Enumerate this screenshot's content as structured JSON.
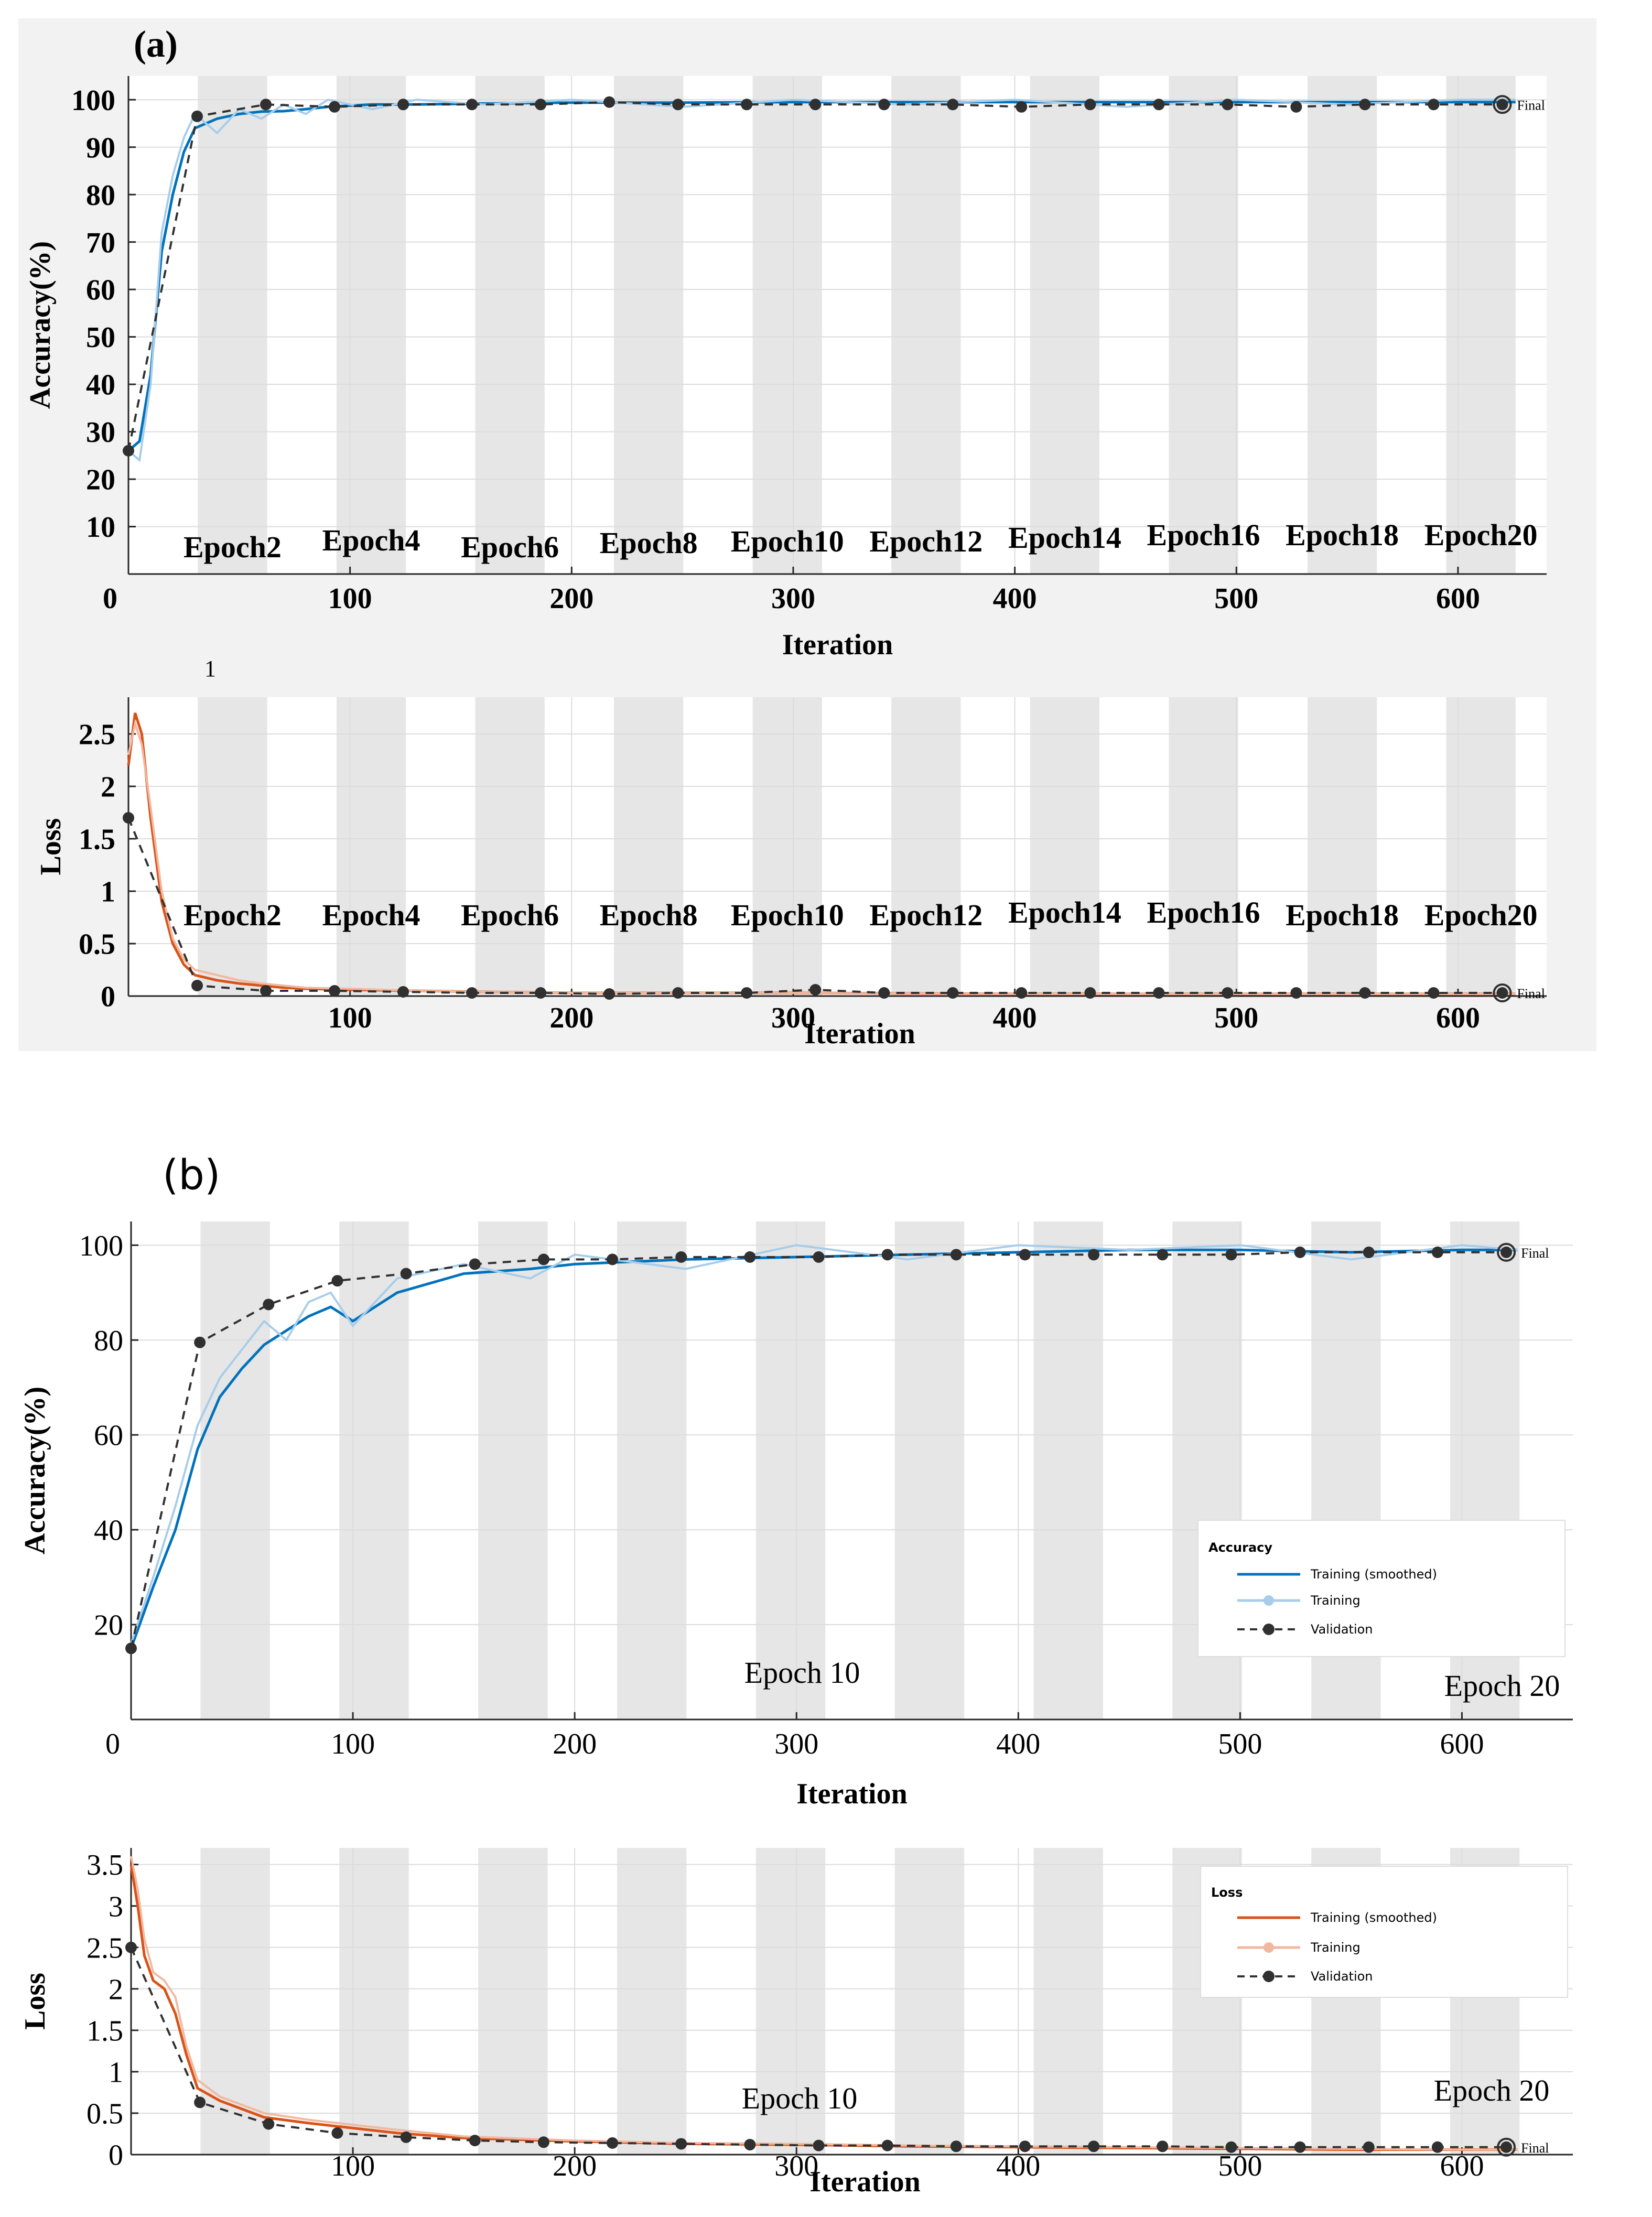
{
  "colors": {
    "panel_bg": "#f2f2f2",
    "epoch_band": "#e6e6e6",
    "acc_train_smoothed": "#0072bd",
    "acc_train": "#a7cdea",
    "loss_train_smoothed": "#d95319",
    "loss_train": "#f2b89f",
    "validation": "#303030"
  },
  "chart_data": [
    {
      "id": "a-accuracy",
      "type": "line",
      "panel_label": "(a)",
      "ylabel": "Accuracy(%)",
      "xlabel": "Iteration",
      "xlim": [
        0,
        640
      ],
      "ylim": [
        0,
        105
      ],
      "x_ticks": [
        "0",
        "100",
        "200",
        "300",
        "400",
        "500",
        "600"
      ],
      "y_ticks": [
        "10",
        "20",
        "30",
        "40",
        "50",
        "60",
        "70",
        "80",
        "90",
        "100"
      ],
      "epoch_labels": [
        "Epoch2",
        "Epoch4",
        "Epoch6",
        "Epoch8",
        "Epoch10",
        "Epoch12",
        "Epoch14",
        "Epoch16",
        "Epoch18",
        "Epoch20"
      ],
      "final_label": "Final",
      "stray_label": "1",
      "series": [
        {
          "name": "Training (smoothed)",
          "x": [
            0,
            5,
            10,
            15,
            20,
            25,
            30,
            40,
            50,
            60,
            70,
            80,
            90,
            110,
            130,
            160,
            200,
            250,
            300,
            350,
            400,
            450,
            500,
            550,
            600,
            626
          ],
          "values": [
            26,
            28,
            42,
            68,
            80,
            89,
            94,
            96,
            97,
            97.5,
            97.6,
            98,
            98.5,
            99,
            99,
            99.2,
            99.4,
            99.4,
            99.5,
            99.5,
            99.5,
            99.5,
            99.5,
            99.5,
            99.5,
            99.5
          ]
        },
        {
          "name": "Training",
          "x": [
            0,
            5,
            10,
            15,
            20,
            25,
            30,
            40,
            50,
            60,
            70,
            80,
            90,
            110,
            130,
            160,
            200,
            250,
            300,
            350,
            400,
            450,
            500,
            550,
            600,
            626
          ],
          "values": [
            26,
            24,
            40,
            72,
            84,
            92,
            97,
            93,
            98,
            96,
            99,
            97,
            100,
            98,
            100,
            99,
            100,
            98.5,
            100,
            99,
            100,
            98.5,
            100,
            99,
            100,
            100
          ]
        },
        {
          "name": "Validation",
          "x": [
            0,
            31,
            62,
            93,
            124,
            155,
            186,
            217,
            248,
            279,
            310,
            341,
            372,
            403,
            434,
            465,
            496,
            527,
            558,
            589,
            620
          ],
          "values": [
            26,
            96.5,
            99,
            98.5,
            99,
            99,
            99,
            99.5,
            99,
            99,
            99,
            99,
            99,
            98.5,
            99,
            99,
            99,
            98.5,
            99,
            99,
            99
          ]
        }
      ]
    },
    {
      "id": "a-loss",
      "type": "line",
      "ylabel": "Loss",
      "xlabel": "Iteration",
      "xlim": [
        0,
        640
      ],
      "ylim": [
        0,
        2.85
      ],
      "x_ticks": [
        "100",
        "200",
        "300",
        "400",
        "500",
        "600"
      ],
      "y_ticks": [
        "0",
        "0.5",
        "1",
        "1.5",
        "2",
        "2.5"
      ],
      "epoch_labels": [
        "Epoch2",
        "Epoch4",
        "Epoch6",
        "Epoch8",
        "Epoch10",
        "Epoch12",
        "Epoch14",
        "Epoch16",
        "Epoch18",
        "Epoch20"
      ],
      "final_label": "Final",
      "series": [
        {
          "name": "Training (smoothed)",
          "x": [
            0,
            3,
            6,
            10,
            15,
            20,
            25,
            30,
            40,
            50,
            60,
            70,
            80,
            100,
            130,
            160,
            200,
            300,
            400,
            500,
            600,
            626
          ],
          "values": [
            2.2,
            2.7,
            2.5,
            1.7,
            0.9,
            0.5,
            0.3,
            0.2,
            0.15,
            0.12,
            0.1,
            0.08,
            0.07,
            0.06,
            0.05,
            0.04,
            0.03,
            0.03,
            0.02,
            0.02,
            0.02,
            0.02
          ]
        },
        {
          "name": "Training",
          "x": [
            0,
            3,
            6,
            10,
            15,
            20,
            25,
            30,
            40,
            50,
            60,
            70,
            80,
            100,
            130,
            160,
            200,
            300,
            400,
            500,
            600,
            626
          ],
          "values": [
            2.3,
            2.6,
            2.4,
            1.8,
            1.0,
            0.55,
            0.35,
            0.25,
            0.2,
            0.15,
            0.12,
            0.1,
            0.08,
            0.07,
            0.05,
            0.04,
            0.03,
            0.03,
            0.02,
            0.02,
            0.02,
            0.02
          ]
        },
        {
          "name": "Validation",
          "x": [
            0,
            31,
            62,
            93,
            124,
            155,
            186,
            217,
            248,
            279,
            310,
            341,
            372,
            403,
            434,
            465,
            496,
            527,
            558,
            589,
            620
          ],
          "values": [
            1.7,
            0.1,
            0.05,
            0.05,
            0.04,
            0.03,
            0.03,
            0.02,
            0.03,
            0.03,
            0.06,
            0.03,
            0.03,
            0.03,
            0.03,
            0.03,
            0.03,
            0.03,
            0.03,
            0.03,
            0.03
          ]
        }
      ]
    },
    {
      "id": "b-accuracy",
      "type": "line",
      "panel_label": "(b)",
      "ylabel": "Accuracy(%)",
      "xlabel": "Iteration",
      "xlim": [
        0,
        650
      ],
      "ylim": [
        0,
        105
      ],
      "x_ticks": [
        "0",
        "100",
        "200",
        "300",
        "400",
        "500",
        "600"
      ],
      "y_ticks": [
        "20",
        "40",
        "60",
        "80",
        "100"
      ],
      "epoch_labels": [
        "Epoch 10",
        "Epoch 20"
      ],
      "final_label": "Final",
      "legend": {
        "title": "Accuracy",
        "entries": [
          "Training (smoothed)",
          "Training",
          "Validation"
        ]
      },
      "series": [
        {
          "name": "Training (smoothed)",
          "x": [
            0,
            10,
            20,
            30,
            40,
            50,
            60,
            70,
            80,
            90,
            100,
            120,
            150,
            180,
            200,
            250,
            300,
            350,
            400,
            450,
            500,
            550,
            600,
            625
          ],
          "values": [
            15,
            28,
            40,
            57,
            68,
            74,
            79,
            82,
            85,
            87,
            84,
            90,
            94,
            95,
            96,
            97,
            97.5,
            98,
            98.5,
            99,
            99,
            98.5,
            99,
            99
          ]
        },
        {
          "name": "Training",
          "x": [
            0,
            10,
            20,
            30,
            40,
            50,
            60,
            70,
            80,
            90,
            100,
            120,
            150,
            180,
            200,
            250,
            300,
            350,
            400,
            450,
            500,
            550,
            600,
            625
          ],
          "values": [
            16,
            30,
            45,
            62,
            72,
            78,
            84,
            80,
            88,
            90,
            83,
            93,
            96,
            93,
            98,
            95,
            100,
            97,
            100,
            99,
            100,
            97,
            100,
            99
          ]
        },
        {
          "name": "Validation",
          "x": [
            0,
            31,
            62,
            93,
            124,
            155,
            186,
            217,
            248,
            279,
            310,
            341,
            372,
            403,
            434,
            465,
            496,
            527,
            558,
            589,
            620
          ],
          "values": [
            15,
            79.5,
            87.5,
            92.5,
            94,
            96,
            97,
            97,
            97.5,
            97.5,
            97.5,
            98,
            98,
            98,
            98,
            98,
            98,
            98.5,
            98.5,
            98.5,
            98.5
          ]
        }
      ]
    },
    {
      "id": "b-loss",
      "type": "line",
      "ylabel": "Loss",
      "xlabel": "Iteration",
      "xlim": [
        0,
        650
      ],
      "ylim": [
        0,
        3.7
      ],
      "x_ticks": [
        "100",
        "200",
        "300",
        "400",
        "500",
        "600"
      ],
      "y_ticks": [
        "0",
        "0.5",
        "1",
        "1.5",
        "2",
        "2.5",
        "3",
        "3.5"
      ],
      "epoch_labels": [
        "Epoch 10",
        "Epoch 20"
      ],
      "final_label": "Final",
      "legend": {
        "title": "Loss",
        "entries": [
          "Training (smoothed)",
          "Training",
          "Validation"
        ]
      },
      "series": [
        {
          "name": "Training (smoothed)",
          "x": [
            0,
            3,
            6,
            10,
            15,
            20,
            25,
            30,
            40,
            50,
            60,
            80,
            100,
            120,
            150,
            200,
            250,
            300,
            350,
            400,
            450,
            500,
            550,
            600,
            625
          ],
          "values": [
            3.5,
            3.0,
            2.4,
            2.1,
            2.0,
            1.7,
            1.2,
            0.8,
            0.65,
            0.55,
            0.45,
            0.38,
            0.32,
            0.26,
            0.2,
            0.16,
            0.13,
            0.12,
            0.1,
            0.09,
            0.08,
            0.07,
            0.06,
            0.06,
            0.06
          ]
        },
        {
          "name": "Training",
          "x": [
            0,
            3,
            6,
            10,
            15,
            20,
            25,
            30,
            40,
            50,
            60,
            80,
            100,
            120,
            150,
            200,
            250,
            300,
            350,
            400,
            450,
            500,
            550,
            600,
            625
          ],
          "values": [
            3.6,
            3.2,
            2.6,
            2.2,
            2.1,
            1.9,
            1.3,
            0.9,
            0.7,
            0.6,
            0.5,
            0.42,
            0.36,
            0.3,
            0.22,
            0.17,
            0.14,
            0.13,
            0.11,
            0.1,
            0.09,
            0.08,
            0.07,
            0.06,
            0.06
          ]
        },
        {
          "name": "Validation",
          "x": [
            0,
            31,
            62,
            93,
            124,
            155,
            186,
            217,
            248,
            279,
            310,
            341,
            372,
            403,
            434,
            465,
            496,
            527,
            558,
            589,
            620
          ],
          "values": [
            2.5,
            0.63,
            0.37,
            0.26,
            0.21,
            0.17,
            0.15,
            0.14,
            0.13,
            0.12,
            0.11,
            0.11,
            0.1,
            0.1,
            0.1,
            0.1,
            0.09,
            0.09,
            0.09,
            0.09,
            0.09
          ]
        }
      ]
    }
  ]
}
